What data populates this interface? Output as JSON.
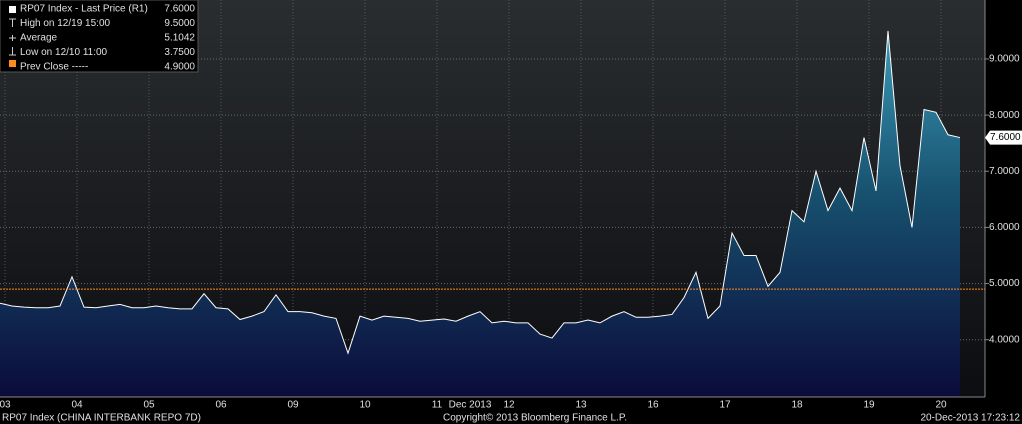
{
  "chart_data": {
    "type": "area",
    "x_label": "Dec 2013",
    "series": [
      {
        "name": "RP07 Index - Last Price (R1)",
        "color": "#ffffff",
        "values": [
          4.65,
          4.6,
          4.58,
          4.57,
          4.57,
          4.6,
          5.12,
          4.58,
          4.57,
          4.6,
          4.63,
          4.57,
          4.57,
          4.6,
          4.57,
          4.55,
          4.55,
          4.82,
          4.57,
          4.55,
          4.36,
          4.42,
          4.5,
          4.8,
          4.5,
          4.5,
          4.48,
          4.42,
          4.38,
          3.76,
          4.42,
          4.35,
          4.42,
          4.4,
          4.38,
          4.33,
          4.35,
          4.37,
          4.33,
          4.42,
          4.5,
          4.3,
          4.33,
          4.3,
          4.3,
          4.1,
          4.03,
          4.3,
          4.3,
          4.35,
          4.3,
          4.42,
          4.5,
          4.4,
          4.4,
          4.42,
          4.45,
          4.75,
          5.2,
          4.38,
          4.6,
          5.9,
          5.5,
          5.5,
          4.95,
          5.2,
          6.3,
          6.1,
          7.0,
          6.3,
          6.7,
          6.3,
          7.6,
          6.65,
          9.5,
          7.1,
          6.0,
          8.1,
          8.05,
          7.65,
          7.6
        ]
      }
    ],
    "categories": [
      "03",
      null,
      null,
      null,
      null,
      null,
      "04",
      null,
      null,
      null,
      null,
      null,
      "05",
      null,
      null,
      null,
      null,
      null,
      "06",
      null,
      null,
      null,
      null,
      null,
      "09",
      null,
      null,
      null,
      null,
      null,
      "10",
      null,
      null,
      null,
      null,
      null,
      "11",
      null,
      null,
      null,
      null,
      null,
      "12",
      null,
      null,
      null,
      null,
      null,
      "13",
      null,
      null,
      null,
      null,
      null,
      "16",
      null,
      null,
      null,
      null,
      null,
      "17",
      null,
      null,
      null,
      null,
      null,
      "18",
      null,
      null,
      null,
      null,
      null,
      "19",
      null,
      null,
      null,
      null,
      null,
      "20",
      null,
      null
    ],
    "ylim": [
      2.98,
      10.05
    ],
    "yticks": [
      {
        "value": 4,
        "label": "4.0000"
      },
      {
        "value": 5,
        "label": "5.0000"
      },
      {
        "value": 6,
        "label": "6.0000"
      },
      {
        "value": 7,
        "label": "7.0000"
      },
      {
        "value": 8,
        "label": "8.0000"
      },
      {
        "value": 9,
        "label": "9.0000"
      }
    ],
    "grid": true,
    "last_price": {
      "value": 7.6,
      "label": "7.6000"
    },
    "prev_close": {
      "value": 4.9,
      "color": "#ff8c1a"
    },
    "legend": [
      {
        "text": "RP07 Index - Last Price (R1)",
        "value": {
          "value": 7.6,
          "label": "7.6000"
        }
      },
      {
        "text": "High on 12/19 15:00",
        "value": {
          "value": 9.5,
          "label": "9.5000"
        }
      },
      {
        "text": "Average",
        "value": {
          "value": 5.1042,
          "label": "5.1042"
        }
      },
      {
        "text": "Low on 12/10 11:00",
        "value": {
          "value": 3.75,
          "label": "3.7500"
        }
      },
      {
        "text": "Prev Close -----",
        "value": {
          "value": 4.9,
          "label": "4.9000"
        }
      }
    ],
    "footer_left": "RP07 Index (CHINA INTERBANK REPO 7D)",
    "footer_center": "Copyright© 2013 Bloomberg Finance L.P.",
    "footer_right": "20-Dec-2013 17:23:12"
  }
}
